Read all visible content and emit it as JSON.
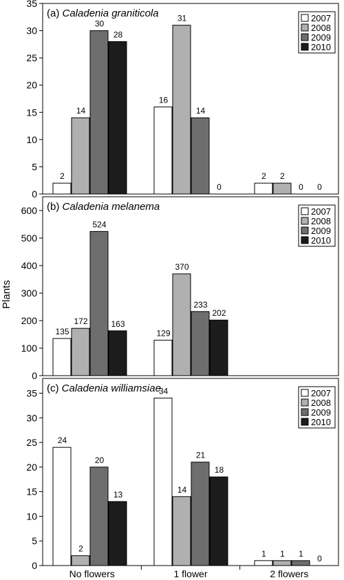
{
  "figure": {
    "ylabel": "Plants",
    "categories": [
      "No flowers",
      "1 flower",
      "2 flowers"
    ],
    "legend_years": [
      "2007",
      "2008",
      "2009",
      "2010"
    ],
    "colors": {
      "2007": "#ffffff",
      "2008": "#b0b0b0",
      "2009": "#6e6e6e",
      "2010": "#1c1c1c"
    }
  },
  "chart_data": [
    {
      "type": "bar",
      "panel": "(a)",
      "title": "Caladenia graniticola",
      "categories": [
        "No flowers",
        "1 flower",
        "2 flowers"
      ],
      "ylim": [
        0,
        35
      ],
      "yticks": [
        0,
        5,
        10,
        15,
        20,
        25,
        30,
        35
      ],
      "legend": "top-right",
      "series": [
        {
          "name": "2007",
          "values": [
            2,
            16,
            2
          ]
        },
        {
          "name": "2008",
          "values": [
            14,
            31,
            2
          ]
        },
        {
          "name": "2009",
          "values": [
            30,
            14,
            0
          ]
        },
        {
          "name": "2010",
          "values": [
            28,
            0,
            0
          ]
        }
      ]
    },
    {
      "type": "bar",
      "panel": "(b)",
      "title": "Caladenia melanema",
      "categories": [
        "No flowers",
        "1 flower",
        "2 flowers"
      ],
      "ylim": [
        0,
        650
      ],
      "yticks": [
        0,
        100,
        200,
        300,
        400,
        500,
        600
      ],
      "legend": "top-right",
      "series": [
        {
          "name": "2007",
          "values": [
            135,
            129,
            null
          ]
        },
        {
          "name": "2008",
          "values": [
            172,
            370,
            null
          ]
        },
        {
          "name": "2009",
          "values": [
            524,
            233,
            null
          ]
        },
        {
          "name": "2010",
          "values": [
            163,
            202,
            null
          ]
        }
      ]
    },
    {
      "type": "bar",
      "panel": "(c)",
      "title": "Caladenia williamsiae",
      "categories": [
        "No flowers",
        "1 flower",
        "2 flowers"
      ],
      "ylim": [
        0,
        38
      ],
      "yticks": [
        0,
        5,
        10,
        15,
        20,
        25,
        30,
        35
      ],
      "legend": "top-right",
      "series": [
        {
          "name": "2007",
          "values": [
            24,
            34,
            1
          ]
        },
        {
          "name": "2008",
          "values": [
            2,
            14,
            1
          ]
        },
        {
          "name": "2009",
          "values": [
            20,
            21,
            1
          ]
        },
        {
          "name": "2010",
          "values": [
            13,
            18,
            0
          ]
        }
      ]
    }
  ]
}
